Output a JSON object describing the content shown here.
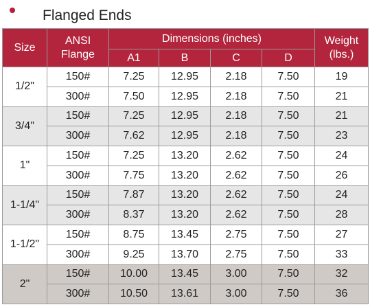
{
  "heading": {
    "bullet": "•",
    "title": "Flanged Ends",
    "bullet_color": "#b4203a"
  },
  "table": {
    "header_color": "#b3253d",
    "headers": {
      "size": "Size",
      "ansi_line1": "ANSI",
      "ansi_line2": "Flange",
      "dimensions": "Dimensions (inches)",
      "a1": "A1",
      "b": "B",
      "c": "C",
      "d": "D",
      "weight_line1": "Weight",
      "weight_line2": "(lbs.)"
    },
    "groups": [
      {
        "size": "1/2\"",
        "shade": "white",
        "rows": [
          {
            "flange": "150#",
            "a1": "7.25",
            "b": "12.95",
            "c": "2.18",
            "d": "7.50",
            "weight": "19"
          },
          {
            "flange": "300#",
            "a1": "7.50",
            "b": "12.95",
            "c": "2.18",
            "d": "7.50",
            "weight": "21"
          }
        ]
      },
      {
        "size": "3/4\"",
        "shade": "light",
        "rows": [
          {
            "flange": "150#",
            "a1": "7.25",
            "b": "12.95",
            "c": "2.18",
            "d": "7.50",
            "weight": "21"
          },
          {
            "flange": "300#",
            "a1": "7.62",
            "b": "12.95",
            "c": "2.18",
            "d": "7.50",
            "weight": "23"
          }
        ]
      },
      {
        "size": "1\"",
        "shade": "white",
        "rows": [
          {
            "flange": "150#",
            "a1": "7.25",
            "b": "13.20",
            "c": "2.62",
            "d": "7.50",
            "weight": "24"
          },
          {
            "flange": "300#",
            "a1": "7.75",
            "b": "13.20",
            "c": "2.62",
            "d": "7.50",
            "weight": "26"
          }
        ]
      },
      {
        "size": "1-1/4\"",
        "shade": "light",
        "rows": [
          {
            "flange": "150#",
            "a1": "7.87",
            "b": "13.20",
            "c": "2.62",
            "d": "7.50",
            "weight": "24"
          },
          {
            "flange": "300#",
            "a1": "8.37",
            "b": "13.20",
            "c": "2.62",
            "d": "7.50",
            "weight": "28"
          }
        ]
      },
      {
        "size": "1-1/2\"",
        "shade": "white",
        "rows": [
          {
            "flange": "150#",
            "a1": "8.75",
            "b": "13.45",
            "c": "2.75",
            "d": "7.50",
            "weight": "27"
          },
          {
            "flange": "300#",
            "a1": "9.25",
            "b": "13.70",
            "c": "2.75",
            "d": "7.50",
            "weight": "33"
          }
        ]
      },
      {
        "size": "2\"",
        "shade": "dark",
        "rows": [
          {
            "flange": "150#",
            "a1": "10.00",
            "b": "13.45",
            "c": "3.00",
            "d": "7.50",
            "weight": "32"
          },
          {
            "flange": "300#",
            "a1": "10.50",
            "b": "13.61",
            "c": "3.00",
            "d": "7.50",
            "weight": "36"
          }
        ]
      }
    ]
  }
}
